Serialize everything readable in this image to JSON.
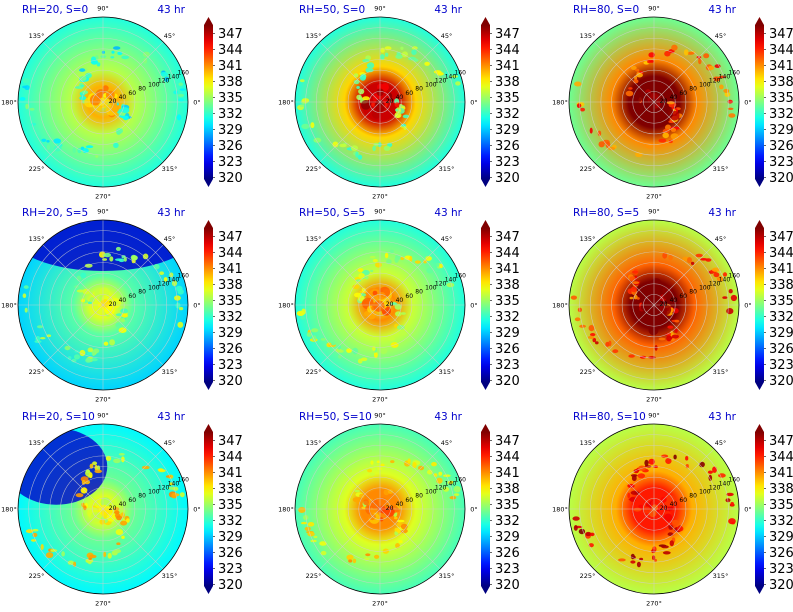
{
  "chart_data": {
    "type": "heatmap",
    "subtype": "polar",
    "layout": {
      "rows": 3,
      "cols": 3
    },
    "colormap": "jet",
    "colorbar": {
      "range": [
        320,
        347
      ],
      "ticks": [
        "347",
        "344",
        "341",
        "338",
        "335",
        "332",
        "329",
        "326",
        "323",
        "320"
      ],
      "extend": "both"
    },
    "angular_ticks": [
      "90°",
      "45°",
      "0°",
      "315°",
      "270°",
      "225°",
      "180°",
      "135°"
    ],
    "radial_ticks": [
      "20",
      "40",
      "60",
      "80",
      "100",
      "120",
      "140",
      "160"
    ],
    "time_label": "43 hr",
    "grid": true,
    "panels": [
      {
        "title": "RH=20, S=0",
        "rh": 20,
        "s": 0,
        "center": 334,
        "core": 339,
        "coreRadius": 0.18,
        "base": 331,
        "spots": 330,
        "background": "blue"
      },
      {
        "title": "RH=50, S=0",
        "rh": 50,
        "s": 0,
        "center": 345,
        "core": 345,
        "coreRadius": 0.22,
        "base": 331,
        "spots": 333,
        "background": "cyan-blue"
      },
      {
        "title": "RH=80, S=0",
        "rh": 80,
        "s": 0,
        "center": 347,
        "core": 347,
        "coreRadius": 0.3,
        "base": 333,
        "spots": 340,
        "background": "cyan"
      },
      {
        "title": "RH=20, S=5",
        "rh": 20,
        "s": 5,
        "center": 336,
        "core": 336,
        "coreRadius": 0.15,
        "base": 329,
        "spots": 333,
        "background": "blue, dark at top"
      },
      {
        "title": "RH=50, S=5",
        "rh": 50,
        "s": 5,
        "center": 336,
        "core": 340,
        "coreRadius": 0.18,
        "base": 331,
        "spots": 334,
        "background": "cyan-blue"
      },
      {
        "title": "RH=80, S=5",
        "rh": 80,
        "s": 5,
        "center": 347,
        "core": 347,
        "coreRadius": 0.28,
        "base": 335,
        "spots": 341,
        "background": "green-cyan"
      },
      {
        "title": "RH=20, S=10",
        "rh": 20,
        "s": 10,
        "center": 336,
        "core": 336,
        "coreRadius": 0.15,
        "base": 330,
        "spots": 336,
        "background": "blue, dark at upper-left"
      },
      {
        "title": "RH=50, S=10",
        "rh": 50,
        "s": 10,
        "center": 340,
        "core": 340,
        "coreRadius": 0.22,
        "base": 332,
        "spots": 336,
        "background": "cyan"
      },
      {
        "title": "RH=80, S=10",
        "rh": 80,
        "s": 10,
        "center": 343,
        "core": 343,
        "coreRadius": 0.25,
        "base": 335,
        "spots": 343,
        "background": "green-yellow"
      }
    ]
  }
}
